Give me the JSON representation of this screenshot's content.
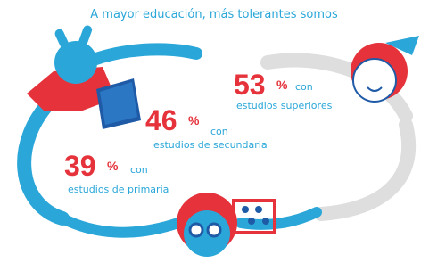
{
  "subtitle": "A mayor educación, más tolerantes somos",
  "stats": [
    {
      "value": "53",
      "unit": "%",
      "connector": "con",
      "label": "estudios superiores"
    },
    {
      "value": "46",
      "unit": "%",
      "connector": "con",
      "label": "estudios de secundaria"
    },
    {
      "value": "39",
      "unit": "%",
      "connector": "con",
      "label": "estudios de primaria"
    }
  ]
}
